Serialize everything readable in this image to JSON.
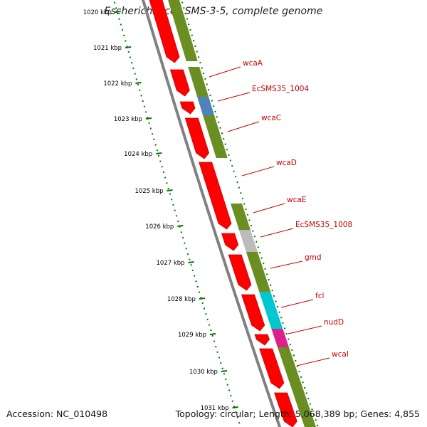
{
  "title": "Escherichia coli SMS-3-5, complete genome",
  "footer": {
    "accession": "Accession: NC_010498",
    "summary": "Topology: circular; Length: 5,068,389 bp; Genes: 4,855"
  },
  "colors": {
    "cds_red": "#ff0000",
    "olive": "#6b8e23",
    "blue": "#4f81bd",
    "gray": "#bbbbbb",
    "cyan": "#00c8d0",
    "magenta": "#e0208a",
    "tick_green": "#007700",
    "backbone": "#808080",
    "label_red": "#cc0000"
  },
  "kbp_ticks": [
    "1020 kbp",
    "1021 kbp",
    "1022 kbp",
    "1023 kbp",
    "1024 kbp",
    "1025 kbp",
    "1026 kbp",
    "1027 kbp",
    "1028 kbp",
    "1029 kbp",
    "1030 kbp",
    "1031 kbp"
  ],
  "gene_labels": [
    "wcaA",
    "EcSMS35_1004",
    "wcaC",
    "wcaD",
    "wcaE",
    "EcSMS35_1008",
    "gmd",
    "fcl",
    "nudD",
    "wcaI"
  ]
}
